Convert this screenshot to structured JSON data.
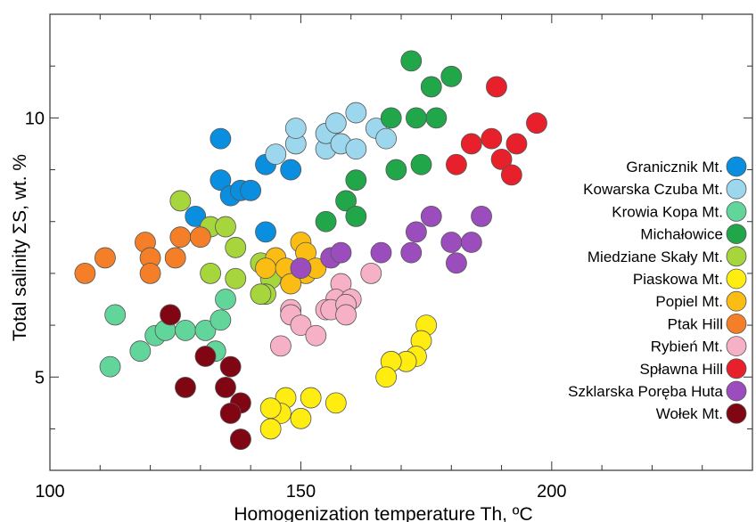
{
  "chart_data": {
    "type": "scatter",
    "title": "",
    "xlabel": "Homogenization temperature Th, ºC",
    "ylabel": "Total salinity ΣS, wt. %",
    "xlim": [
      100,
      240
    ],
    "ylim": [
      3.2,
      12.0
    ],
    "x_ticks": [
      100,
      150,
      200
    ],
    "y_ticks": [
      5,
      10
    ],
    "grid": false,
    "legend_position": "right",
    "series": [
      {
        "name": "Granicznik Mt.",
        "color": "#0a8fe0",
        "points": [
          [
            134,
            9.6
          ],
          [
            134,
            8.8
          ],
          [
            136,
            8.5
          ],
          [
            138,
            8.6
          ],
          [
            140,
            8.6
          ],
          [
            129,
            8.1
          ],
          [
            143,
            9.1
          ],
          [
            148,
            9.0
          ],
          [
            143,
            7.8
          ]
        ]
      },
      {
        "name": "Kowarska Czuba Mt.",
        "color": "#9cd7ee",
        "points": [
          [
            145,
            9.3
          ],
          [
            149,
            9.5
          ],
          [
            149,
            9.8
          ],
          [
            155,
            9.4
          ],
          [
            155,
            9.7
          ],
          [
            157,
            9.9
          ],
          [
            158,
            9.5
          ],
          [
            161,
            10.1
          ],
          [
            161,
            9.4
          ],
          [
            165,
            9.8
          ],
          [
            167,
            9.6
          ]
        ]
      },
      {
        "name": "Krowia Kopa Mt.",
        "color": "#62d69a",
        "points": [
          [
            113,
            6.2
          ],
          [
            112,
            5.2
          ],
          [
            118,
            5.5
          ],
          [
            121,
            5.8
          ],
          [
            123,
            5.9
          ],
          [
            127,
            5.9
          ],
          [
            131,
            5.9
          ],
          [
            133,
            5.5
          ],
          [
            134,
            6.1
          ],
          [
            135,
            6.5
          ]
        ]
      },
      {
        "name": "Michałowice",
        "color": "#22a64a",
        "points": [
          [
            172,
            11.1
          ],
          [
            176,
            10.6
          ],
          [
            180,
            10.8
          ],
          [
            177,
            10.0
          ],
          [
            173,
            10.0
          ],
          [
            168,
            10.0
          ],
          [
            169,
            9.0
          ],
          [
            174,
            9.1
          ],
          [
            161,
            8.8
          ],
          [
            159,
            8.4
          ],
          [
            161,
            8.1
          ],
          [
            155,
            8.0
          ]
        ]
      },
      {
        "name": "Miedziane Skały Mt.",
        "color": "#a6d63c",
        "points": [
          [
            126,
            8.4
          ],
          [
            132,
            7.9
          ],
          [
            135,
            7.9
          ],
          [
            137,
            7.5
          ],
          [
            137,
            6.9
          ],
          [
            132,
            7.0
          ],
          [
            142,
            7.2
          ],
          [
            144,
            7.1
          ],
          [
            144,
            6.9
          ],
          [
            143,
            6.6
          ],
          [
            142,
            6.6
          ]
        ]
      },
      {
        "name": "Piaskowa Mt.",
        "color": "#ffec10",
        "points": [
          [
            175,
            6.0
          ],
          [
            174,
            5.7
          ],
          [
            173,
            5.4
          ],
          [
            171,
            5.3
          ],
          [
            168,
            5.3
          ],
          [
            167,
            5.0
          ],
          [
            157,
            4.5
          ],
          [
            152,
            4.6
          ],
          [
            147,
            4.6
          ],
          [
            146,
            4.3
          ],
          [
            144,
            4.4
          ],
          [
            144,
            4.0
          ],
          [
            150,
            4.2
          ],
          [
            138,
            3.8
          ]
        ]
      },
      {
        "name": "Popiel Mt.",
        "color": "#fbbd14",
        "points": [
          [
            150,
            7.6
          ],
          [
            151,
            7.4
          ],
          [
            151,
            7.0
          ],
          [
            145,
            7.3
          ],
          [
            143,
            7.1
          ],
          [
            147,
            7.1
          ],
          [
            148,
            6.8
          ],
          [
            153,
            7.1
          ]
        ]
      },
      {
        "name": "Ptak Hill",
        "color": "#f57f28",
        "points": [
          [
            107,
            7.0
          ],
          [
            111,
            7.3
          ],
          [
            119,
            7.6
          ],
          [
            120,
            7.3
          ],
          [
            120,
            7.0
          ],
          [
            125,
            7.3
          ],
          [
            126,
            7.7
          ],
          [
            130,
            7.7
          ]
        ]
      },
      {
        "name": "Rybień Mt.",
        "color": "#f7b1c7",
        "points": [
          [
            164,
            7.0
          ],
          [
            158,
            6.8
          ],
          [
            157,
            6.5
          ],
          [
            160,
            6.5
          ],
          [
            155,
            6.3
          ],
          [
            156,
            6.3
          ],
          [
            159,
            6.4
          ],
          [
            159,
            6.2
          ],
          [
            148,
            6.3
          ],
          [
            148,
            6.2
          ],
          [
            150,
            6.0
          ],
          [
            153,
            5.8
          ],
          [
            146,
            5.6
          ]
        ]
      },
      {
        "name": "Spławna Hill",
        "color": "#e8202b",
        "points": [
          [
            189,
            10.6
          ],
          [
            197,
            9.9
          ],
          [
            188,
            9.6
          ],
          [
            193,
            9.5
          ],
          [
            184,
            9.5
          ],
          [
            190,
            9.2
          ],
          [
            192,
            8.9
          ],
          [
            181,
            9.1
          ]
        ]
      },
      {
        "name": "Szklarska Poręba Huta",
        "color": "#9c4dbd",
        "points": [
          [
            186,
            8.1
          ],
          [
            176,
            8.1
          ],
          [
            180,
            7.6
          ],
          [
            184,
            7.6
          ],
          [
            173,
            7.8
          ],
          [
            156,
            7.3
          ],
          [
            158,
            7.4
          ],
          [
            166,
            7.4
          ],
          [
            172,
            7.4
          ],
          [
            181,
            7.2
          ],
          [
            150,
            7.1
          ]
        ]
      },
      {
        "name": "Wołek Mt.",
        "color": "#800614",
        "points": [
          [
            124,
            6.2
          ],
          [
            131,
            5.4
          ],
          [
            136,
            5.2
          ],
          [
            127,
            4.8
          ],
          [
            135,
            4.8
          ],
          [
            138,
            4.5
          ],
          [
            136,
            4.3
          ],
          [
            138,
            3.8
          ]
        ]
      }
    ]
  }
}
